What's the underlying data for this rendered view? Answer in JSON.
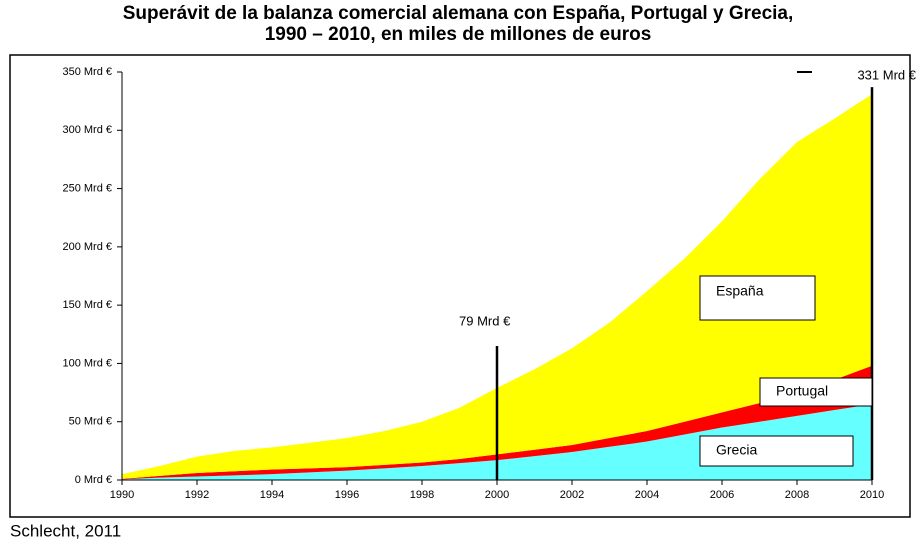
{
  "chart_data": {
    "type": "stacked_area",
    "title": [
      "Superávit de la balanza comercial alemana con España, Portugal y Grecia,",
      "1990 – 2010, en miles de millones de euros"
    ],
    "source": "Schlecht, 2011",
    "x": [
      1990,
      1991,
      1992,
      1993,
      1994,
      1995,
      1996,
      1997,
      1998,
      1999,
      2000,
      2001,
      2002,
      2003,
      2004,
      2005,
      2006,
      2007,
      2008,
      2009,
      2010
    ],
    "series": [
      {
        "name": "Grecia",
        "color": "#66ffff",
        "values": [
          0.5,
          2,
          3,
          4,
          5,
          6.5,
          8,
          10,
          12,
          14.5,
          17,
          20.5,
          24,
          28.5,
          33,
          39,
          45,
          50,
          55,
          60,
          65
        ]
      },
      {
        "name": "Portugal",
        "color": "#ff0000",
        "values": [
          0.5,
          1.5,
          3,
          3.5,
          4,
          3.5,
          3,
          3,
          3,
          3.5,
          5,
          5.5,
          6,
          7.5,
          9,
          11,
          13,
          16,
          20,
          26,
          33
        ]
      },
      {
        "name": "España",
        "color": "#ffff00",
        "values": [
          4,
          8.5,
          14,
          17.5,
          19,
          22,
          25,
          29,
          35,
          44,
          57,
          69,
          83,
          99,
          120,
          140,
          164,
          192,
          215,
          224,
          233
        ]
      }
    ],
    "xlim": [
      1990,
      2010
    ],
    "xticks": [
      1990,
      1992,
      1994,
      1996,
      1998,
      2000,
      2002,
      2004,
      2006,
      2008,
      2010
    ],
    "ylim": [
      0,
      350
    ],
    "yticks": [
      {
        "value": 0,
        "label": "0 Mrd €"
      },
      {
        "value": 50,
        "label": "50 Mrd €"
      },
      {
        "value": 100,
        "label": "100 Mrd €"
      },
      {
        "value": 150,
        "label": "150 Mrd €"
      },
      {
        "value": 200,
        "label": "200 Mrd €"
      },
      {
        "value": 250,
        "label": "250 Mrd €"
      },
      {
        "value": 300,
        "label": "300 Mrd €"
      },
      {
        "value": 350,
        "label": "350 Mrd €"
      }
    ],
    "annotations": [
      {
        "label": "79 Mrd €",
        "x": 2000,
        "value": 79
      },
      {
        "label": "331 Mrd €",
        "x": 2010,
        "value": 331
      }
    ]
  }
}
